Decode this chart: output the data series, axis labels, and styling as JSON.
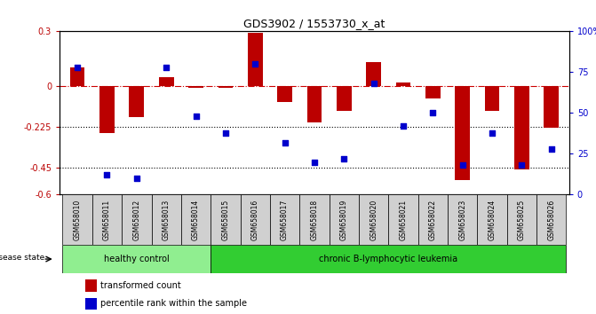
{
  "title": "GDS3902 / 1553730_x_at",
  "samples": [
    "GSM658010",
    "GSM658011",
    "GSM658012",
    "GSM658013",
    "GSM658014",
    "GSM658015",
    "GSM658016",
    "GSM658017",
    "GSM658018",
    "GSM658019",
    "GSM658020",
    "GSM658021",
    "GSM658022",
    "GSM658023",
    "GSM658024",
    "GSM658025",
    "GSM658026"
  ],
  "red_bars": [
    0.1,
    -0.26,
    -0.17,
    0.05,
    -0.01,
    -0.01,
    0.29,
    -0.09,
    -0.2,
    -0.14,
    0.13,
    0.02,
    -0.07,
    -0.52,
    -0.14,
    -0.46,
    -0.23
  ],
  "blue_vals_pct": [
    78,
    12,
    10,
    78,
    48,
    38,
    80,
    32,
    20,
    22,
    68,
    42,
    50,
    18,
    38,
    18,
    28
  ],
  "ylim_left": [
    -0.6,
    0.3
  ],
  "ylim_right": [
    0,
    100
  ],
  "yticks_left": [
    0.3,
    0,
    -0.225,
    -0.45,
    -0.6
  ],
  "yticks_right": [
    100,
    75,
    50,
    25,
    0
  ],
  "ytick_right_labels": [
    "100%",
    "75",
    "50",
    "25",
    "0"
  ],
  "hlines": [
    -0.225,
    -0.45
  ],
  "healthy_count": 5,
  "disease_label_left": "healthy control",
  "disease_label_right": "chronic B-lymphocytic leukemia",
  "disease_state_label": "disease state",
  "legend_red": "transformed count",
  "legend_blue": "percentile rank within the sample",
  "bar_color": "#bb0000",
  "blue_color": "#0000cc",
  "hline_zero_color": "#cc0000",
  "hline_dotted_color": "#000000",
  "healthy_bg": "#90ee90",
  "leukemia_bg": "#32cd32",
  "tick_bg": "#d0d0d0"
}
